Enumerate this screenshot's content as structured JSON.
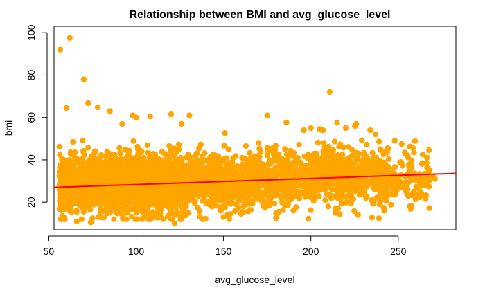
{
  "chart_data": {
    "type": "scatter",
    "title": "Relationship between BMI and avg_glucose_level",
    "xlabel": "avg_glucose_level",
    "ylabel": "bmi",
    "xlim": [
      53,
      283
    ],
    "ylim": [
      7,
      103
    ],
    "x_ticks": [
      50,
      100,
      150,
      200,
      250
    ],
    "y_ticks": [
      20,
      40,
      60,
      80,
      100
    ],
    "x_tick_labels": [
      "50",
      "100",
      "150",
      "200",
      "250"
    ],
    "y_tick_labels": [
      "20",
      "40",
      "60",
      "80",
      "100"
    ],
    "grid": false,
    "legend": "none",
    "colors": {
      "points": "#FFA500",
      "regression_line": "#FF0000"
    },
    "regression_line": {
      "x": [
        53,
        283
      ],
      "y": [
        27.0,
        33.6
      ]
    },
    "series": [
      {
        "values": [
          [
            56.5,
            92.0
          ],
          [
            62.0,
            97.5
          ],
          [
            70.0,
            78.0
          ],
          [
            72.5,
            66.8
          ],
          [
            78.0,
            64.8
          ],
          [
            85.0,
            63.0
          ],
          [
            60.0,
            64.5
          ],
          [
            92.0,
            57.0
          ],
          [
            98.0,
            61.0
          ],
          [
            100.0,
            60.0
          ],
          [
            108.0,
            60.5
          ],
          [
            120.0,
            61.5
          ],
          [
            126.0,
            57.0
          ],
          [
            130.5,
            61.0
          ],
          [
            170.0,
            48.0
          ],
          [
            175.0,
            61.0
          ],
          [
            186.0,
            57.6
          ],
          [
            196.0,
            54.0
          ],
          [
            200.0,
            55.0
          ],
          [
            205.0,
            54.5
          ],
          [
            210.8,
            72.0
          ],
          [
            215.0,
            57.5
          ],
          [
            220.0,
            55.0
          ],
          [
            226.0,
            57.0
          ],
          [
            234.0,
            54.0
          ],
          [
            237.0,
            52.0
          ],
          [
            248.0,
            49.0
          ],
          [
            252.0,
            47.5
          ],
          [
            259.0,
            43.5
          ],
          [
            264.0,
            42.5
          ],
          [
            268.0,
            35.0
          ],
          [
            270.0,
            32.0
          ],
          [
            271.0,
            31.0
          ],
          [
            122.0,
            10.0
          ],
          [
            74.0,
            10.5
          ],
          [
            66.0,
            11.0
          ],
          [
            180.0,
            12.5
          ],
          [
            150.0,
            13.0
          ],
          [
            214.0,
            15.0
          ],
          [
            227.0,
            14.0
          ],
          [
            242.0,
            16.0
          ],
          [
            160.0,
            14.5
          ],
          [
            210.0,
            18.0
          ],
          [
            190.0,
            16.0
          ],
          [
            255.0,
            24.0
          ],
          [
            262.0,
            27.0
          ],
          [
            266.0,
            29.0
          ],
          [
            244.0,
            45.0
          ],
          [
            240.0,
            30.0
          ],
          [
            235.0,
            35.0
          ],
          [
            230.0,
            40.0
          ],
          [
            225.0,
            25.0
          ],
          [
            218.0,
            30.0
          ],
          [
            212.0,
            33.0
          ],
          [
            206.0,
            28.0
          ],
          [
            200.0,
            36.0
          ],
          [
            194.0,
            31.0
          ],
          [
            188.0,
            27.0
          ],
          [
            182.0,
            34.0
          ],
          [
            176.0,
            29.0
          ],
          [
            170.0,
            32.0
          ],
          [
            164.0,
            26.0
          ],
          [
            158.0,
            30.0
          ],
          [
            152.0,
            35.0
          ],
          [
            146.0,
            28.0
          ],
          [
            140.0,
            31.0
          ],
          [
            134.0,
            26.0
          ],
          [
            130.0,
            33.0
          ],
          [
            126.0,
            29.0
          ],
          [
            122.0,
            24.0
          ],
          [
            118.0,
            35.0
          ],
          [
            114.0,
            28.0
          ],
          [
            110.0,
            31.0
          ],
          [
            106.0,
            26.0
          ],
          [
            102.0,
            33.0
          ],
          [
            98.0,
            29.0
          ],
          [
            94.0,
            24.0
          ],
          [
            90.0,
            35.0
          ],
          [
            86.0,
            28.0
          ],
          [
            82.0,
            31.0
          ],
          [
            78.0,
            26.0
          ],
          [
            74.0,
            33.0
          ],
          [
            70.0,
            29.0
          ],
          [
            66.0,
            24.0
          ],
          [
            62.0,
            35.0
          ],
          [
            58.0,
            28.0
          ]
        ]
      }
    ]
  }
}
